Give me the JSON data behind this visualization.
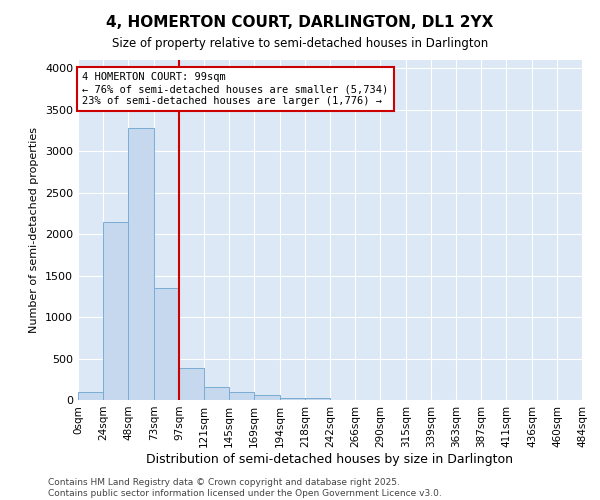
{
  "title1": "4, HOMERTON COURT, DARLINGTON, DL1 2YX",
  "title2": "Size of property relative to semi-detached houses in Darlington",
  "xlabel": "Distribution of semi-detached houses by size in Darlington",
  "ylabel": "Number of semi-detached properties",
  "property_label": "4 HOMERTON COURT: 99sqm",
  "pct_smaller": 76,
  "pct_larger": 23,
  "count_smaller": "5,734",
  "count_larger": "1,776",
  "bin_edges": [
    0,
    24,
    48,
    73,
    97,
    121,
    145,
    169,
    194,
    218,
    242,
    266,
    290,
    315,
    339,
    363,
    387,
    411,
    436,
    460,
    484
  ],
  "bin_labels": [
    "0sqm",
    "24sqm",
    "48sqm",
    "73sqm",
    "97sqm",
    "121sqm",
    "145sqm",
    "169sqm",
    "194sqm",
    "218sqm",
    "242sqm",
    "266sqm",
    "290sqm",
    "315sqm",
    "339sqm",
    "363sqm",
    "387sqm",
    "411sqm",
    "436sqm",
    "460sqm",
    "484sqm"
  ],
  "bar_heights": [
    100,
    2150,
    3280,
    1350,
    380,
    160,
    100,
    55,
    30,
    20,
    0,
    0,
    0,
    0,
    0,
    0,
    0,
    0,
    0,
    0
  ],
  "bar_color": "#c5d8ee",
  "bar_edge_color": "#7aadd4",
  "vline_color": "#cc0000",
  "vline_x": 97,
  "ylim": [
    0,
    4100
  ],
  "yticks": [
    0,
    500,
    1000,
    1500,
    2000,
    2500,
    3000,
    3500,
    4000
  ],
  "annotation_box_color": "#cc0000",
  "background_color": "#dce8f5",
  "footer_line1": "Contains HM Land Registry data © Crown copyright and database right 2025.",
  "footer_line2": "Contains public sector information licensed under the Open Government Licence v3.0."
}
